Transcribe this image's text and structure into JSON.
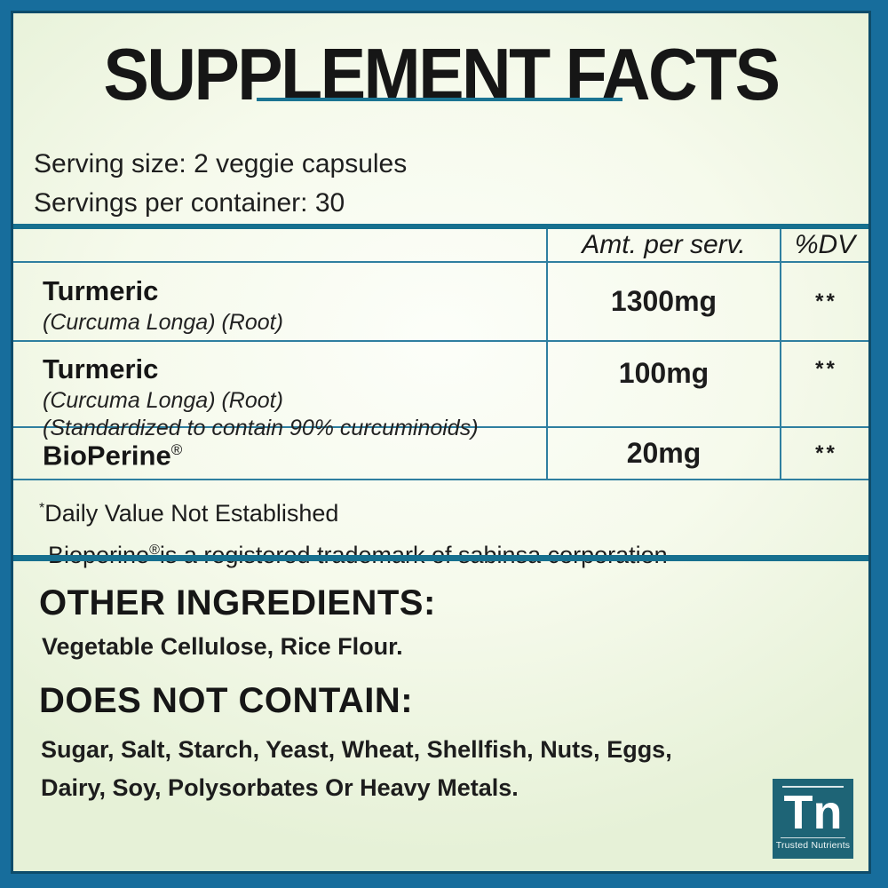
{
  "title": "SUPPLEMENT FACTS",
  "serving": {
    "size_line": "Serving size: 2 veggie capsules",
    "per_container_line": "Servings per container: 30"
  },
  "table": {
    "col_amount_header": "Amt. per serv.",
    "col_dv_header": "%DV",
    "rows": [
      {
        "name": "Turmeric",
        "detail1": "(Curcuma Longa) (Root)",
        "amount": "1300mg",
        "dv": "**"
      },
      {
        "name": "Turmeric",
        "detail1": "(Curcuma Longa) (Root)",
        "detail2": "(Standardized to contain 90% curcuminoids)",
        "amount": "100mg",
        "dv": "**"
      },
      {
        "name": "BioPerine",
        "reg_mark": "®",
        "amount": "20mg",
        "dv": "**"
      }
    ],
    "footnote1": {
      "marker": "*",
      "text": "Daily Value Not Established"
    },
    "footnote2": {
      "name": "Bioperine",
      "reg_mark": "®",
      "text": "is a registered trademark of sabinsa corporation"
    }
  },
  "other_ingredients": {
    "heading": "OTHER INGREDIENTS:",
    "text": "Vegetable Cellulose, Rice Flour."
  },
  "does_not_contain": {
    "heading": "DOES NOT CONTAIN:",
    "line1": "Sugar, Salt, Starch, Yeast, Wheat, Shellfish, Nuts, Eggs,",
    "line2": "Dairy, Soy, Polysorbates Or Heavy Metals."
  },
  "logo": {
    "monogram": "Tn",
    "brand": "Trusted Nutrients"
  },
  "colors": {
    "frame": "#176d9c",
    "frame_inner_line": "#0d4c6b",
    "accent_teal": "#17708f",
    "thin_line": "#2f7fa0",
    "underline": "#1b7492",
    "logo_bg": "#1e6476",
    "bg_center": "#fbfdf6",
    "bg_edge": "#e6f1d7",
    "text": "#1c1c1c"
  }
}
